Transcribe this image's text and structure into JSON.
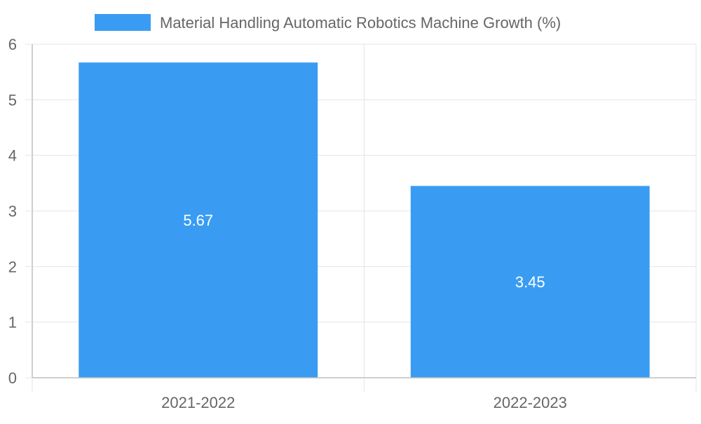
{
  "chart_data": {
    "type": "bar",
    "categories": [
      "2021-2022",
      "2022-2023"
    ],
    "series": [
      {
        "name": "Material Handling Automatic Robotics Machine Growth (%)",
        "values": [
          5.67,
          3.45
        ],
        "color": "#399CF2"
      }
    ],
    "data_labels": [
      "5.67",
      "3.45"
    ],
    "title": "",
    "xlabel": "",
    "ylabel": "",
    "ylim": [
      0,
      6
    ],
    "yticks": [
      0,
      1,
      2,
      3,
      4,
      5,
      6
    ],
    "grid": true,
    "legend_position": "top-center",
    "colors": {
      "grid": "#e5e5e5",
      "axis": "#bdbdbd",
      "text": "#666666",
      "label": "#ffffff"
    }
  }
}
